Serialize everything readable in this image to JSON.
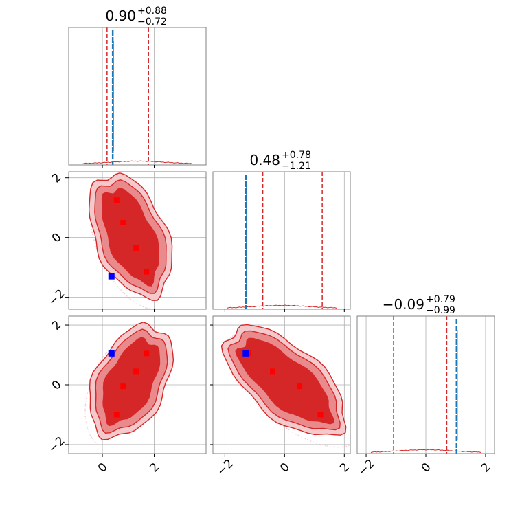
{
  "chart_data": {
    "type": "scatter",
    "subtype": "corner-plot",
    "grid": true,
    "colors": {
      "samples": "#d62728",
      "truth": "#1f77b4",
      "red_markers": "#ff0000",
      "blue_marker": "#0000ff",
      "grid": "#b0b0b0",
      "frame": "#808080"
    },
    "parameters": [
      {
        "median": "0.90",
        "plus": "+0.88",
        "minus": "−0.72",
        "range": [
          -1.3,
          4.0
        ],
        "q16": 0.18,
        "q84": 1.78,
        "truth": 0.4
      },
      {
        "median": "0.48",
        "plus": "+0.78",
        "minus": "−1.21",
        "range": [
          -2.4,
          2.2
        ],
        "q16": -0.73,
        "q84": 1.26,
        "truth": -1.3
      },
      {
        "median": "−0.09",
        "plus": "+0.79",
        "minus": "−0.99",
        "range": [
          -2.3,
          2.3
        ],
        "q16": -1.08,
        "q84": 0.7,
        "truth": 1.03
      }
    ],
    "x_ticks": [
      [
        "0",
        "2"
      ],
      [
        "−2",
        "0",
        "2"
      ],
      [
        "−2",
        "0",
        "2"
      ]
    ],
    "y_ticks": [
      [
        "−2",
        "0",
        "2"
      ],
      [
        "−2",
        "0",
        "2"
      ]
    ],
    "panels_2d": [
      {
        "row": 1,
        "col": 0,
        "red_points": [
          [
            0.55,
            1.25
          ],
          [
            0.8,
            0.5
          ],
          [
            1.3,
            -0.35
          ],
          [
            1.7,
            -1.15
          ]
        ],
        "blue_point": [
          0.35,
          -1.3
        ]
      },
      {
        "row": 2,
        "col": 0,
        "red_points": [
          [
            1.7,
            1.05
          ],
          [
            1.3,
            0.45
          ],
          [
            0.8,
            -0.05
          ],
          [
            0.55,
            -1.0
          ]
        ],
        "blue_point": [
          0.35,
          1.05
        ]
      },
      {
        "row": 2,
        "col": 1,
        "red_points": [
          [
            -1.2,
            1.05
          ],
          [
            -0.4,
            0.45
          ],
          [
            0.5,
            -0.05
          ],
          [
            1.2,
            -1.0
          ]
        ],
        "blue_point": [
          -1.3,
          1.05
        ]
      }
    ]
  }
}
